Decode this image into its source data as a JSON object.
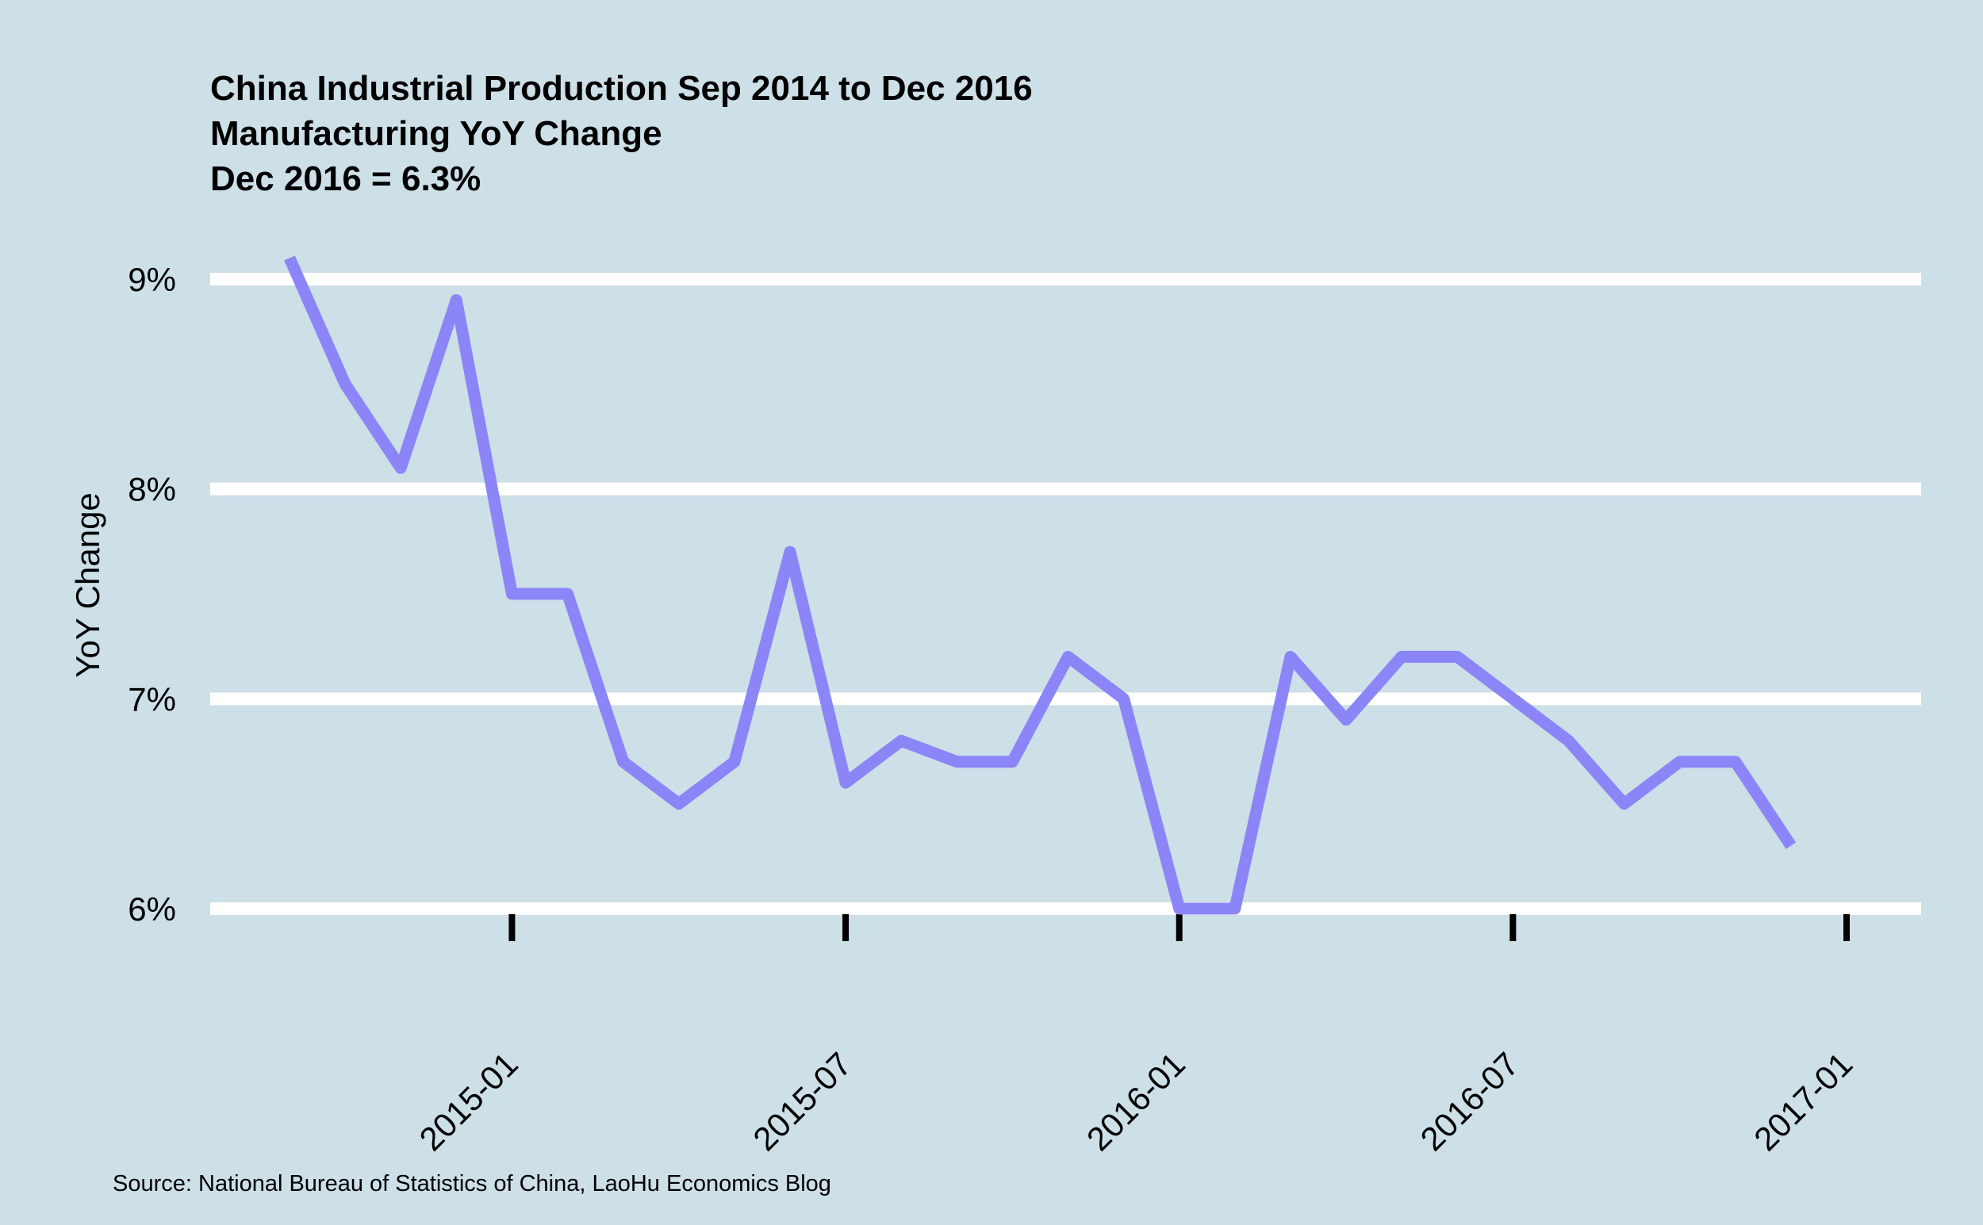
{
  "chart_data": {
    "type": "line",
    "title": [
      "China Industrial Production Sep 2014 to Dec 2016",
      "Manufacturing YoY Change",
      "Dec 2016 = 6.3%"
    ],
    "xlabel": "",
    "ylabel": "YoY Change",
    "source": "Source: National Bureau of Statistics of China, LaoHu Economics Blog",
    "ylim": [
      6,
      9
    ],
    "xlim": [
      "2014-09",
      "2017-01"
    ],
    "y_ticks": [
      6,
      7,
      8,
      9
    ],
    "y_tick_labels": [
      "6%",
      "7%",
      "8%",
      "9%"
    ],
    "x_ticks": [
      "2015-01",
      "2015-07",
      "2016-01",
      "2016-07",
      "2017-01"
    ],
    "grid": "horizontal",
    "line_color": "#8c85f7",
    "background_color": "#cddfe7",
    "series": [
      {
        "x": [
          "2014-09",
          "2014-10",
          "2014-11",
          "2014-12",
          "2015-01",
          "2015-02",
          "2015-03",
          "2015-04",
          "2015-05",
          "2015-06",
          "2015-07",
          "2015-08",
          "2015-09",
          "2015-10",
          "2015-11",
          "2015-12",
          "2016-01",
          "2016-02",
          "2016-03",
          "2016-04",
          "2016-05",
          "2016-06",
          "2016-07",
          "2016-08",
          "2016-09",
          "2016-10",
          "2016-11",
          "2016-12"
        ],
        "values": [
          9.1,
          8.5,
          8.1,
          8.9,
          7.5,
          7.5,
          6.7,
          6.5,
          6.7,
          7.7,
          6.6,
          6.8,
          6.7,
          6.7,
          7.2,
          7.0,
          6.0,
          6.0,
          7.2,
          6.9,
          7.2,
          7.2,
          7.0,
          6.8,
          6.5,
          6.7,
          6.7,
          6.3
        ]
      }
    ]
  }
}
